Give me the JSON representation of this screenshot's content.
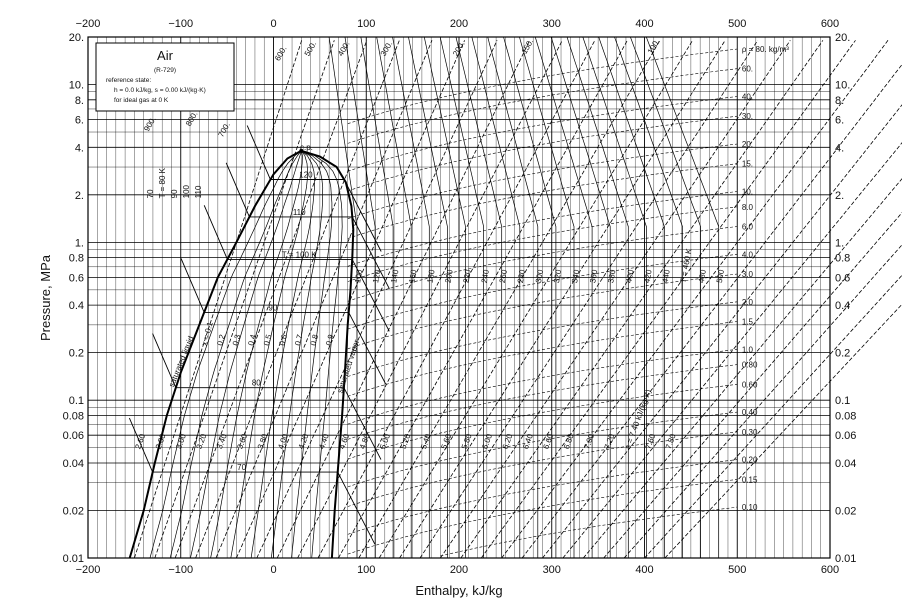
{
  "chart_data": {
    "type": "line",
    "title": "Air",
    "subtitle": "(R-729)",
    "reference_state": [
      "reference state:",
      "h = 0.0 kJ/kg,  s = 0.00 kJ/(kg·K)",
      "for ideal gas at 0 K"
    ],
    "xlabel": "Enthalpy, kJ/kg",
    "ylabel": "Pressure, MPa",
    "xlim": [
      -200,
      600
    ],
    "ylim": [
      0.01,
      20
    ],
    "y_scale": "log",
    "grid": true,
    "x_ticks": [
      -200,
      -100,
      0,
      100,
      200,
      300,
      400,
      500,
      600
    ],
    "x_tick_labels": [
      "−200",
      "−100",
      "0",
      "100",
      "200",
      "300",
      "400",
      "500",
      "600"
    ],
    "y_ticks": [
      20,
      10,
      8,
      6,
      4,
      2,
      1,
      0.8,
      0.6,
      0.4,
      0.2,
      0.1,
      0.08,
      0.06,
      0.04,
      0.02,
      0.01
    ],
    "y_tick_labels": [
      "20.",
      "10.",
      "8.",
      "6.",
      "4.",
      "2.",
      "1.",
      "0.8",
      "0.6",
      "0.4",
      "0.2",
      "0.1",
      "0.08",
      "0.06",
      "0.04",
      "0.02",
      "0.01"
    ],
    "critical_point_label": "c.p.",
    "critical_point": {
      "h": 30,
      "p": 3.8
    },
    "saturation_dome": {
      "liquid_label": "saturated liquid",
      "vapor_label": "saturated vapor",
      "liquid": [
        [
          -155,
          0.01
        ],
        [
          -140,
          0.02
        ],
        [
          -128,
          0.04
        ],
        [
          -115,
          0.08
        ],
        [
          -100,
          0.15
        ],
        [
          -80,
          0.3
        ],
        [
          -60,
          0.6
        ],
        [
          -40,
          1.0
        ],
        [
          -20,
          1.7
        ],
        [
          0,
          2.7
        ],
        [
          15,
          3.4
        ],
        [
          30,
          3.8
        ]
      ],
      "vapor": [
        [
          30,
          3.8
        ],
        [
          50,
          3.5
        ],
        [
          68,
          3.0
        ],
        [
          78,
          2.4
        ],
        [
          84,
          1.7
        ],
        [
          86,
          1.2
        ],
        [
          85,
          0.8
        ],
        [
          83,
          0.5
        ],
        [
          80,
          0.3
        ],
        [
          77,
          0.15
        ],
        [
          74,
          0.08
        ],
        [
          70,
          0.04
        ],
        [
          66,
          0.02
        ],
        [
          63,
          0.01
        ]
      ]
    },
    "quality_lines": {
      "labels": [
        "x = 0.1",
        "0.2",
        "0.3",
        "0.4",
        "0.5",
        "0.6",
        "0.7",
        "0.8",
        "0.9"
      ],
      "values": [
        0.1,
        0.2,
        0.3,
        0.4,
        0.5,
        0.6,
        0.7,
        0.8,
        0.9
      ]
    },
    "isotherms_in_dome": [
      {
        "label": "T = 100 K",
        "p": 0.78
      },
      {
        "label": "110",
        "p": 1.45
      },
      {
        "label": "120",
        "p": 2.5
      },
      {
        "label": "90",
        "p": 0.36
      },
      {
        "label": "80",
        "p": 0.12
      },
      {
        "label": "70",
        "p": 0.035
      }
    ],
    "isotherm_labels_liquid": [
      "70",
      "T = 80 K",
      "90",
      "100",
      "110"
    ],
    "isotherm_labels_vapor": [
      "100",
      "120",
      "140",
      "160",
      "180",
      "200",
      "220",
      "240",
      "260",
      "280",
      "300",
      "320",
      "340",
      "360",
      "380",
      "400",
      "420",
      "440",
      "T = 460 K",
      "480",
      "500"
    ],
    "isotherm_labels_top": [
      "900.",
      "800.",
      "700.",
      "600.",
      "500.",
      "400.",
      "300.",
      "200.",
      "150.",
      "100."
    ],
    "isentrope_labels": [
      "2.60",
      "2.80",
      "3.00",
      "3.20",
      "3.40",
      "3.60",
      "3.80",
      "4.00",
      "4.20",
      "4.40",
      "4.60",
      "4.80",
      "5.00",
      "5.20",
      "5.40",
      "5.60",
      "5.80",
      "6.00",
      "6.20",
      "6.40",
      "6.60",
      "6.80",
      "7.00",
      "7.20",
      "s = 7.40 kJ/(kg·K)",
      "7.60",
      "7.80"
    ],
    "isochore_labels": [
      "ρ = 80. kg/m³",
      "60.",
      "40.",
      "30.",
      "20.",
      "15.",
      "10.",
      "8.0",
      "6.0",
      "4.0",
      "3.0",
      "2.0",
      "1.5",
      "1.0",
      "0.80",
      "0.60",
      "0.40",
      "0.30",
      "0.20",
      "0.15",
      "0.10"
    ],
    "isochore_values": [
      80,
      60,
      40,
      30,
      20,
      15,
      10,
      8,
      6,
      4,
      3,
      2,
      1.5,
      1,
      0.8,
      0.6,
      0.4,
      0.3,
      0.2,
      0.15,
      0.1
    ]
  }
}
